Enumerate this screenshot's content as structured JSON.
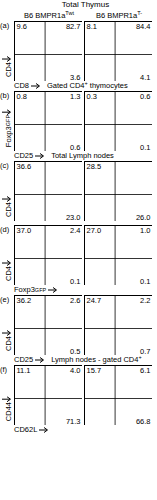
{
  "title": "Total Thymus",
  "columns": [
    {
      "base": "B6 BMPR1a",
      "sup": "Twt"
    },
    {
      "base": "B6 BMPR1a",
      "sup": "T-"
    }
  ],
  "chart_data": [
    {
      "panel": "(a)",
      "heading": null,
      "y_label": "CD4",
      "x_label": "CD8",
      "charts": [
        {
          "type": "quadrant",
          "tick_labels": false,
          "values": [
            9.6,
            82.7,
            null,
            3.6
          ],
          "value_labels": [
            "9.6",
            "82.7",
            null,
            "3.6"
          ]
        },
        {
          "type": "quadrant",
          "tick_labels": false,
          "values": [
            8.1,
            84.4,
            null,
            4.1
          ],
          "value_labels": [
            "8.1",
            "84.4",
            null,
            "4.1"
          ]
        }
      ]
    },
    {
      "panel": "(b)",
      "heading": {
        "base": "Gated CD4",
        "sup": "+",
        "after": " thymocytes"
      },
      "y_label": {
        "base": "Foxp3",
        "sup": "GFP"
      },
      "x_label": "CD25",
      "charts": [
        {
          "type": "quadrant",
          "tick_labels": false,
          "values": [
            0.8,
            1.3,
            null,
            0.6
          ],
          "value_labels": [
            "0.8",
            "1.3",
            null,
            "0.6"
          ]
        },
        {
          "type": "quadrant",
          "tick_labels": false,
          "values": [
            0.3,
            0.6,
            null,
            0.1
          ],
          "value_labels": [
            "0.3",
            "0.6",
            null,
            "0.1"
          ]
        }
      ]
    },
    {
      "panel": "(c)",
      "heading": "Total Lymph nodes",
      "y_label": "CD4",
      "x_label": null,
      "charts": [
        {
          "type": "quadrant",
          "tick_labels": false,
          "values": [
            36.6,
            null,
            null,
            23.0
          ],
          "value_labels": [
            "36.6",
            null,
            null,
            "23.0"
          ]
        },
        {
          "type": "quadrant",
          "tick_labels": false,
          "values": [
            28.5,
            null,
            null,
            26.0
          ],
          "value_labels": [
            "28.5",
            null,
            null,
            "26.0"
          ]
        }
      ]
    },
    {
      "panel": "(d)",
      "heading": null,
      "y_label": "CD4",
      "x_label": {
        "base": "Foxp3",
        "sup": "GFP"
      },
      "charts": [
        {
          "type": "quadrant",
          "tick_labels": false,
          "values": [
            37.0,
            2.4,
            null,
            0.1
          ],
          "value_labels": [
            "37.0",
            "2.4",
            null,
            "0.1"
          ]
        },
        {
          "type": "quadrant",
          "tick_labels": false,
          "values": [
            27.0,
            1.0,
            null,
            0.1
          ],
          "value_labels": [
            "27.0",
            "1.0",
            null,
            "0.1"
          ]
        }
      ]
    },
    {
      "panel": "(e)",
      "heading": null,
      "y_label": "CD4",
      "x_label": "CD25",
      "charts": [
        {
          "type": "quadrant",
          "tick_labels": false,
          "values": [
            36.2,
            2.6,
            null,
            0.5
          ],
          "value_labels": [
            "36.2",
            "2.6",
            null,
            "0.5"
          ]
        },
        {
          "type": "quadrant",
          "tick_labels": false,
          "values": [
            24.7,
            2.2,
            null,
            0.7
          ],
          "value_labels": [
            "24.7",
            "2.2",
            null,
            "0.7"
          ]
        }
      ]
    },
    {
      "panel": "(f)",
      "heading": {
        "base": "Lymph nodes - gated CD4",
        "sup": "+",
        "after": ""
      },
      "y_label": "CD44",
      "x_label": "CD62L",
      "charts": [
        {
          "type": "quadrant",
          "tick_labels": false,
          "values": [
            11.1,
            4.0,
            null,
            71.3
          ],
          "value_labels": [
            "11.1",
            "4.0",
            null,
            "71.3"
          ]
        },
        {
          "type": "quadrant",
          "tick_labels": false,
          "values": [
            15.7,
            6.1,
            null,
            66.8
          ],
          "value_labels": [
            "15.7",
            "6.1",
            null,
            "66.8"
          ]
        }
      ]
    }
  ]
}
